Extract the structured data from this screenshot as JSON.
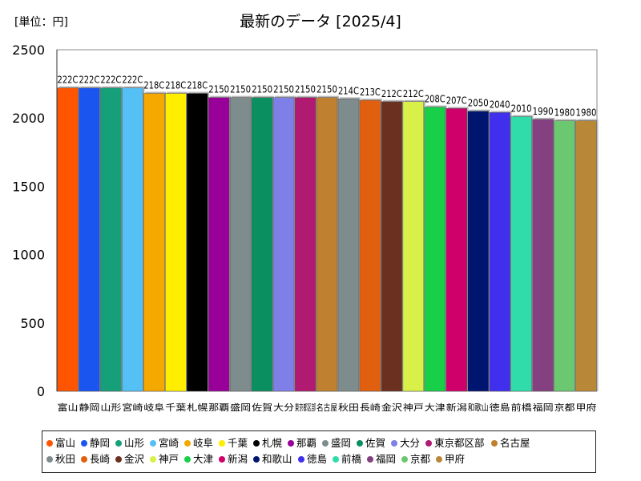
{
  "chart_data": {
    "type": "bar",
    "unit_label": "[単位：円]",
    "title": "最新のデータ [2025/4]",
    "ylim": [
      0,
      2500
    ],
    "yticks": [
      0,
      500,
      1000,
      1500,
      2000,
      2500
    ],
    "grid": false,
    "legend_position": "bottom",
    "categories": [
      "富山",
      "静岡",
      "山形",
      "宮崎",
      "岐阜",
      "千葉",
      "札幌",
      "那覇",
      "盛岡",
      "佐賀",
      "大分",
      "東京都区部",
      "名古屋",
      "秋田",
      "長崎",
      "金沢",
      "神戸",
      "大津",
      "新潟",
      "和歌山",
      "徳島",
      "前橋",
      "福岡",
      "京都",
      "甲府"
    ],
    "values": [
      2220,
      2220,
      2220,
      2220,
      2180,
      2180,
      2180,
      2150,
      2150,
      2150,
      2150,
      2150,
      2150,
      2140,
      2130,
      2120,
      2120,
      2080,
      2070,
      2050,
      2040,
      2010,
      1990,
      1980,
      1980
    ],
    "data_labels": [
      "222C",
      "222C",
      "222C",
      "222C",
      "218C",
      "218C",
      "218C",
      "2150",
      "2150",
      "2150",
      "2150",
      "2150",
      "2150",
      "214C",
      "213C",
      "212C",
      "212C",
      "208C",
      "207C",
      "2050",
      "2040",
      "2010",
      "1990",
      "1980",
      "1980"
    ],
    "colors": [
      "#ff5500",
      "#1a55f0",
      "#16a07a",
      "#55c0f5",
      "#f5a800",
      "#ffee00",
      "#000000",
      "#990099",
      "#7f8c8d",
      "#0a9060",
      "#7f7fe8",
      "#b01a70",
      "#bf8030",
      "#7f8c8d",
      "#e06010",
      "#6b3020",
      "#d8f048",
      "#18d048",
      "#d0006a",
      "#001570",
      "#4030ee",
      "#30ddaa",
      "#844080",
      "#6cc870",
      "#b88838"
    ]
  }
}
